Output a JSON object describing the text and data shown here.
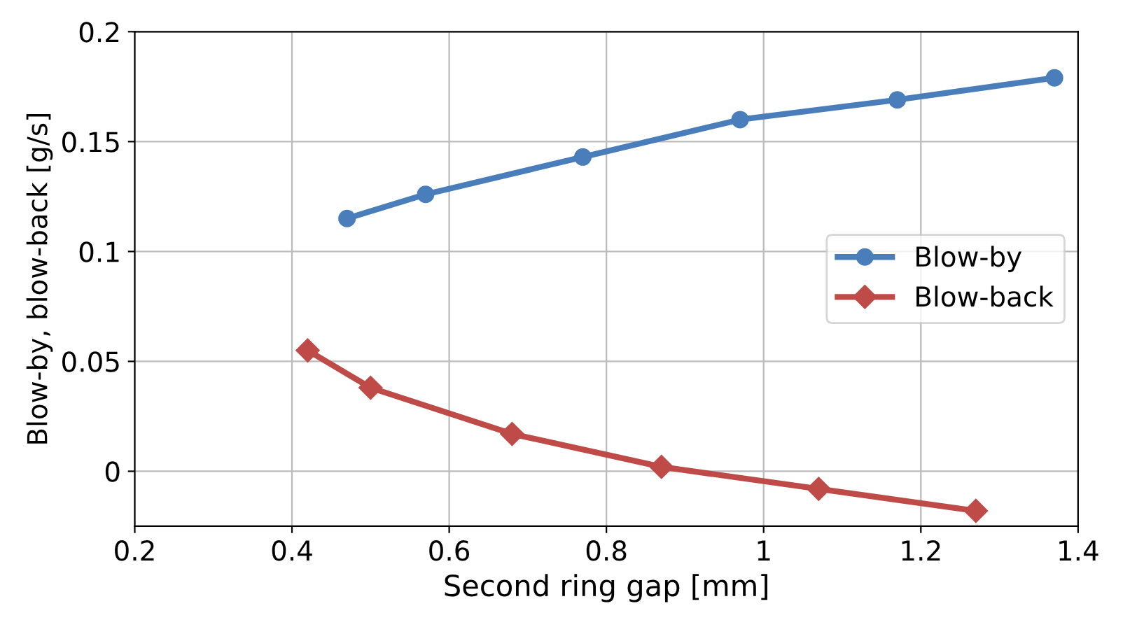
{
  "chart_data": {
    "type": "line",
    "xlabel": "Second ring gap [mm]",
    "ylabel": "Blow-by, blow-back [g/s]",
    "xlim": [
      0.2,
      1.4
    ],
    "xticks": [
      0.2,
      0.4,
      0.6,
      0.8,
      1,
      1.2,
      1.4
    ],
    "ylim": [
      -0.025,
      0.2
    ],
    "yticks": [
      0,
      0.05,
      0.1,
      0.15,
      0.2
    ],
    "grid": true,
    "legend": "right",
    "line_style": "solid",
    "series": [
      {
        "name": "Blow-by",
        "color": "#4a7ebb",
        "marker": "circle",
        "x": [
          0.47,
          0.57,
          0.77,
          0.97,
          1.17,
          1.37
        ],
        "values": [
          0.115,
          0.126,
          0.143,
          0.16,
          0.169,
          0.179
        ]
      },
      {
        "name": "Blow-back",
        "color": "#be4b48",
        "marker": "diamond",
        "x": [
          0.42,
          0.5,
          0.68,
          0.87,
          1.07,
          1.27
        ],
        "values": [
          0.055,
          0.038,
          0.017,
          0.002,
          -0.008,
          -0.018
        ]
      }
    ]
  }
}
